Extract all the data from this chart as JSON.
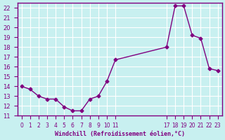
{
  "x": [
    0,
    1,
    2,
    3,
    4,
    5,
    6,
    7,
    8,
    9,
    10,
    11,
    17,
    18,
    19,
    20,
    21,
    22,
    23
  ],
  "y": [
    14.0,
    13.7,
    13.0,
    12.7,
    12.7,
    11.9,
    11.5,
    11.5,
    12.7,
    13.0,
    14.5,
    16.7,
    18.0,
    22.2,
    22.2,
    19.2,
    18.9,
    15.8,
    15.6
  ],
  "line_color": "#800080",
  "marker_color": "#800080",
  "bg_color": "#c8f0f0",
  "grid_color": "#ffffff",
  "xlabel": "Windchill (Refroidissement éolien,°C)",
  "xlim": [
    -0.5,
    23.5
  ],
  "ylim": [
    11,
    22.5
  ],
  "yticks": [
    11,
    12,
    13,
    14,
    15,
    16,
    17,
    18,
    19,
    20,
    21,
    22
  ],
  "xtick_positions": [
    0,
    1,
    2,
    3,
    4,
    5,
    6,
    7,
    8,
    9,
    10,
    11,
    17,
    18,
    19,
    20,
    21,
    22,
    23
  ],
  "xtick_labels": [
    "0",
    "1",
    "2",
    "3",
    "4",
    "5",
    "6",
    "7",
    "8",
    "9",
    "10",
    "11",
    "17",
    "18",
    "19",
    "20",
    "21",
    "22",
    "23"
  ]
}
